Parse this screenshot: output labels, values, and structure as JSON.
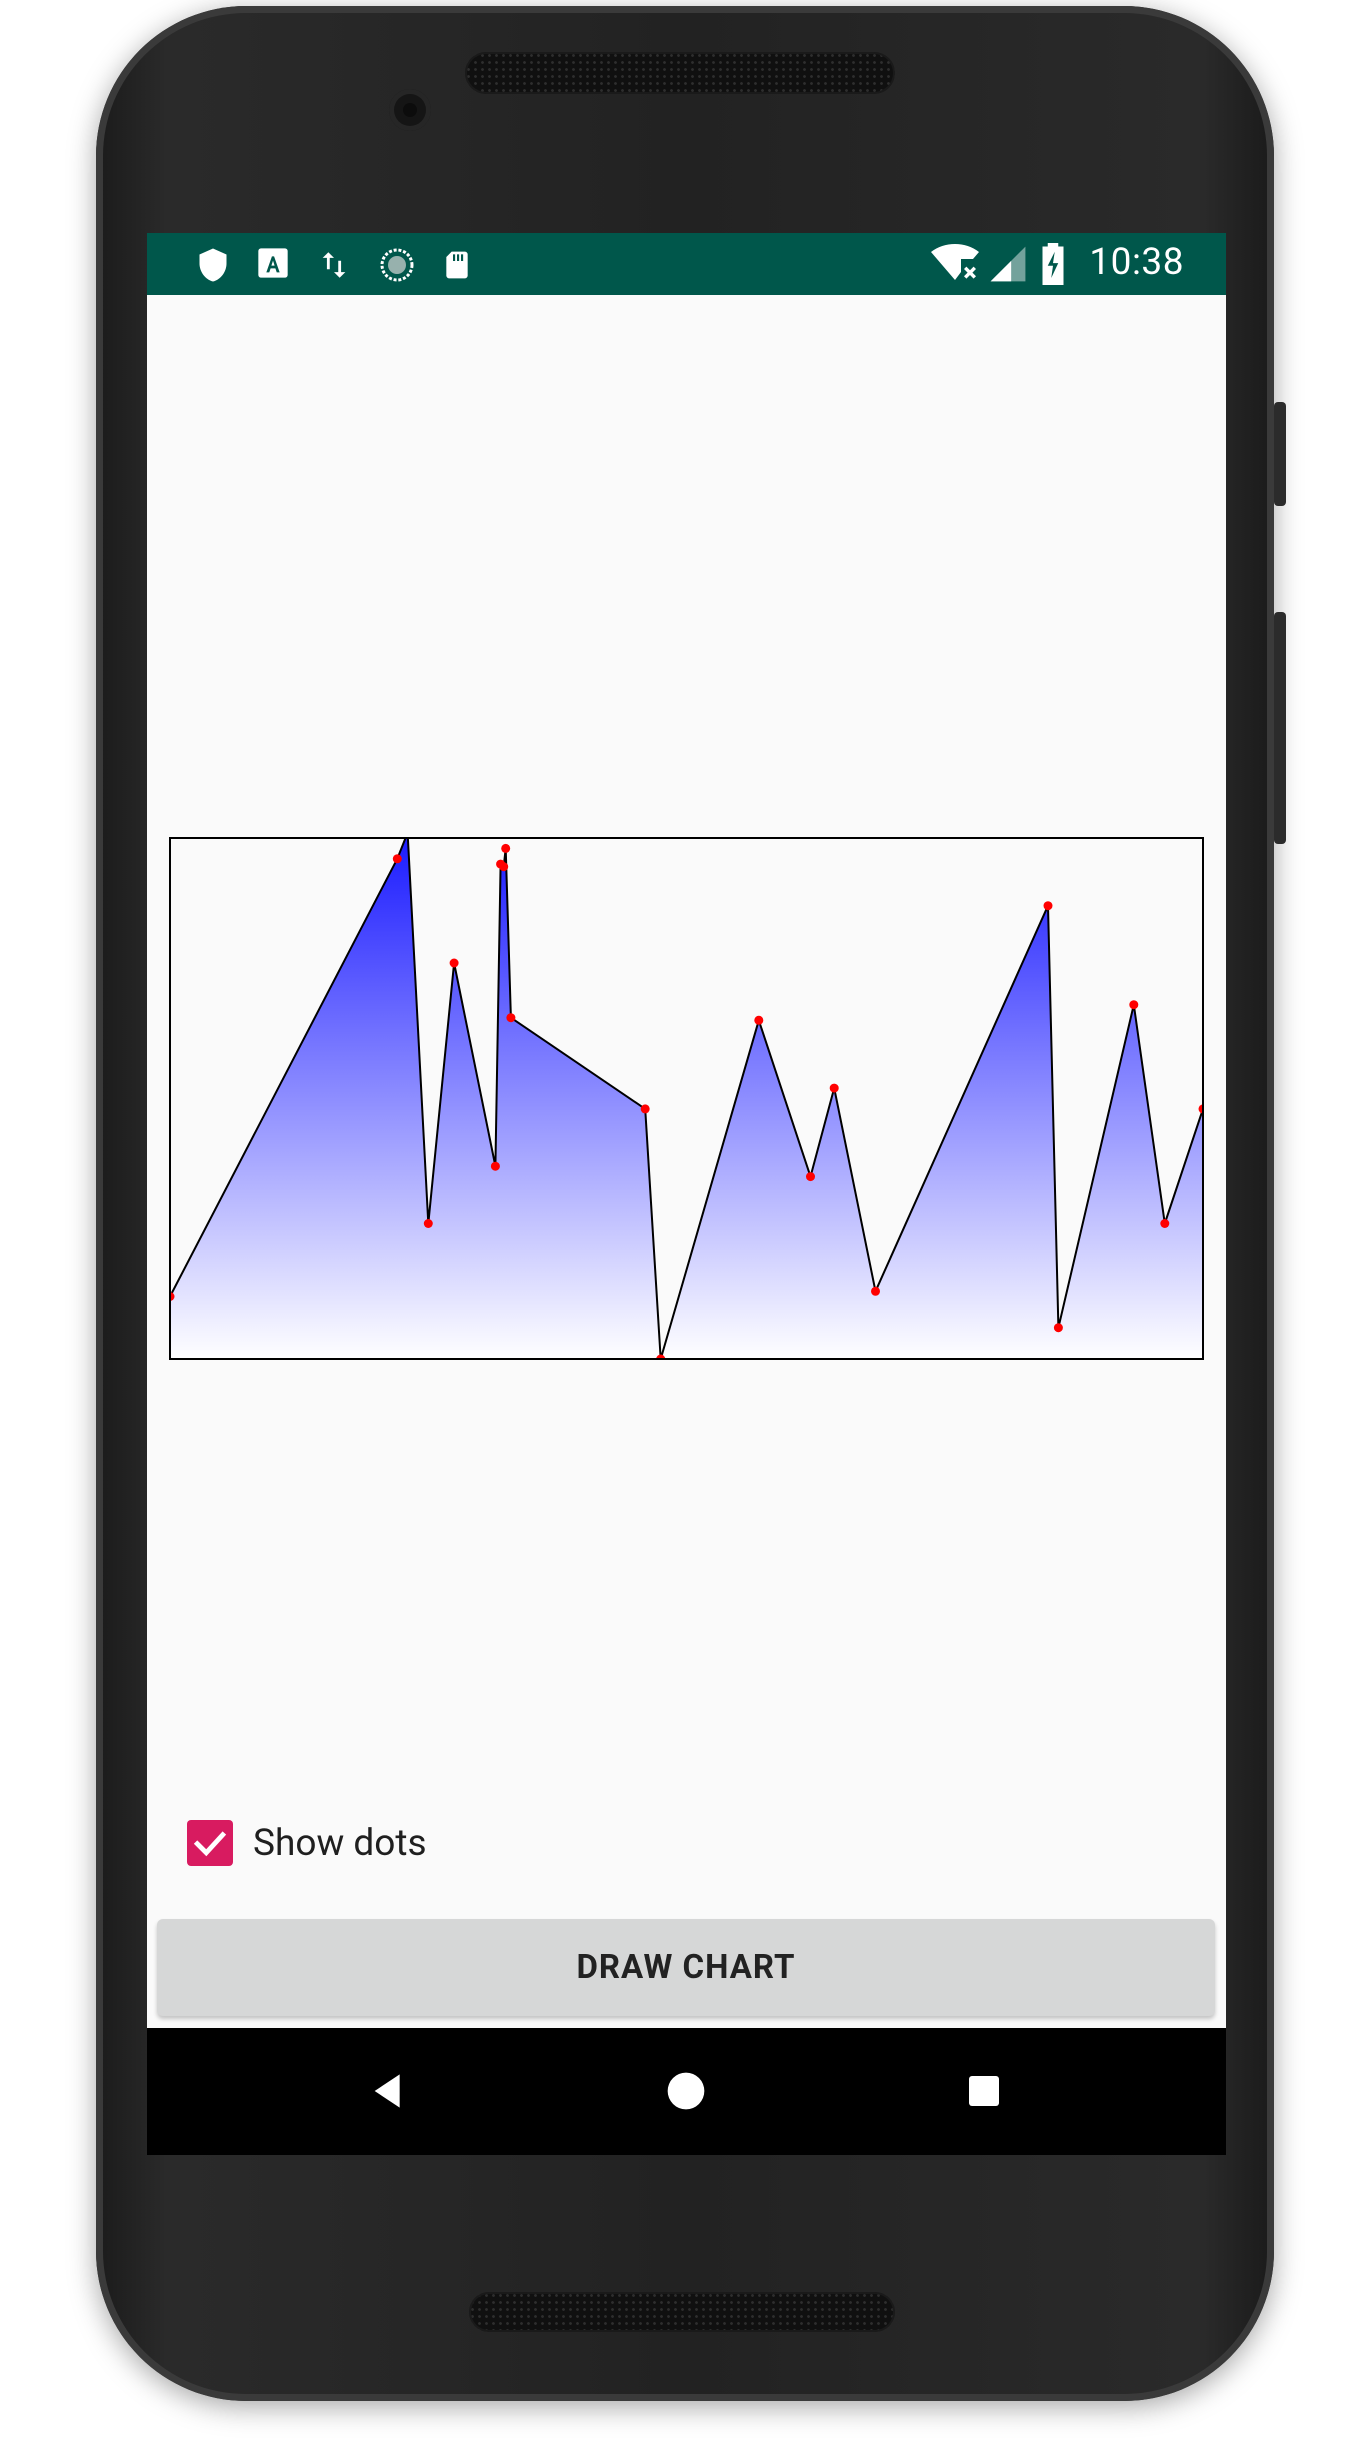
{
  "status_bar": {
    "time": "10:38",
    "background_color": "#00574b",
    "left_icons": [
      "shield-icon",
      "font-a-icon",
      "data-transfer-icon",
      "sync-circle-icon",
      "sd-card-icon"
    ],
    "right_icons": [
      "wifi-no-internet-icon",
      "cell-signal-icon",
      "battery-charging-icon"
    ]
  },
  "chart": {
    "fill_top_color": "#1a1aff",
    "fill_bottom_color": "#ffffff",
    "line_color": "#000000",
    "dot_color": "#ff0000",
    "border_color": "#000000",
    "chart_data": {
      "type": "area",
      "x": [
        0,
        22,
        23,
        25,
        27.5,
        31.5,
        32,
        32.3,
        32.5,
        33,
        46,
        47.5,
        57,
        62,
        64.3,
        68.3,
        85,
        86,
        93.3,
        96.3,
        100,
        101,
        104
      ],
      "y": [
        12,
        96,
        101,
        26,
        76,
        37,
        95,
        94.5,
        98,
        65.5,
        48,
        0,
        65,
        35,
        52,
        13,
        87,
        6,
        68,
        26,
        48,
        47,
        49
      ],
      "ylim": [
        0,
        100
      ],
      "xlim": [
        0,
        100
      ],
      "show_dots": true,
      "grid": false,
      "title": "",
      "xlabel": "",
      "ylabel": ""
    }
  },
  "controls": {
    "show_dots": {
      "label": "Show dots",
      "checked": true,
      "accent_color": "#d81b60"
    },
    "draw_button": {
      "label": "DRAW CHART"
    }
  },
  "navigation": {
    "buttons": [
      "back-icon",
      "home-icon",
      "recents-icon"
    ]
  }
}
